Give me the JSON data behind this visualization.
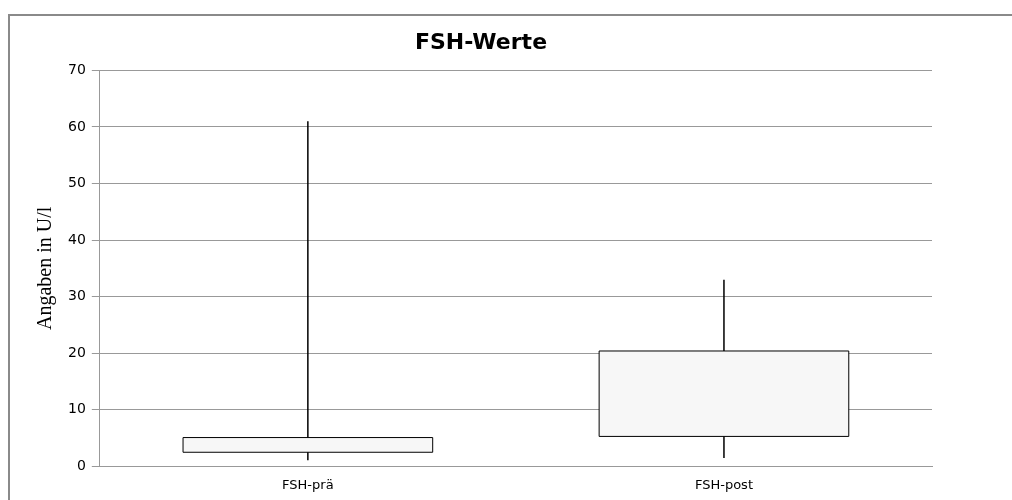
{
  "chart_data": {
    "type": "box",
    "title": "FSH-Werte",
    "ylabel": "Angaben in U/l",
    "categories": [
      "FSH-prä",
      "FSH-post"
    ],
    "boxes": [
      {
        "low": 1.1,
        "q1": 2.5,
        "median": 2.5,
        "q3": 5.1,
        "high": 61
      },
      {
        "low": 1.5,
        "q1": 5.3,
        "median": 5.3,
        "q3": 20.4,
        "high": 33
      }
    ],
    "color": "#f7f7f7",
    "ylim": [
      0,
      70
    ],
    "yticks": [
      0,
      10,
      20,
      30,
      40,
      50,
      60,
      70
    ],
    "grid": "y",
    "legend": false
  }
}
